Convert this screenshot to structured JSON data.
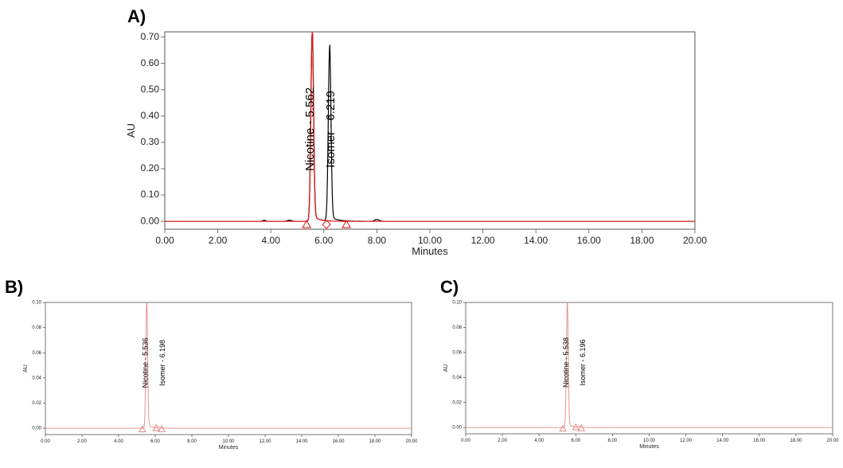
{
  "colors": {
    "trace_black": "#000000",
    "trace_red": "#e01010",
    "trace_red_faint": "#e58a8a",
    "frame": "#555555"
  },
  "chart_data": [
    {
      "panel": "A)",
      "type": "line",
      "xlabel": "Minutes",
      "ylabel": "AU",
      "xlim": [
        0,
        20
      ],
      "ylim": [
        -0.03,
        0.72
      ],
      "x_ticks": [
        "0.00",
        "2.00",
        "4.00",
        "6.00",
        "8.00",
        "10.00",
        "12.00",
        "14.00",
        "16.00",
        "18.00",
        "20.00"
      ],
      "y_ticks": [
        "0.00",
        "0.10",
        "0.20",
        "0.30",
        "0.40",
        "0.50",
        "0.60",
        "0.70"
      ],
      "grid": false,
      "series": [
        {
          "color": "red",
          "baseline": 0.0,
          "peaks": [
            {
              "x": 5.562,
              "y": 0.715,
              "width": 0.05
            }
          ]
        },
        {
          "color": "black",
          "baseline": 0.0,
          "peaks": [
            {
              "x": 5.562,
              "y": 0.715,
              "width": 0.05
            },
            {
              "x": 6.219,
              "y": 0.655,
              "width": 0.05
            },
            {
              "x": 3.75,
              "y": 0.004,
              "width": 0.05
            },
            {
              "x": 4.7,
              "y": 0.004,
              "width": 0.08
            },
            {
              "x": 8.0,
              "y": 0.007,
              "width": 0.08
            }
          ]
        }
      ],
      "peak_labels": [
        "Nicotine - 5.562",
        "Isomer - 6.219"
      ],
      "markers": [
        {
          "shape": "triangle",
          "x": 5.35,
          "y": -0.012
        },
        {
          "shape": "diamond",
          "x": 6.1,
          "y": -0.012
        },
        {
          "shape": "triangle",
          "x": 6.85,
          "y": -0.012
        }
      ]
    },
    {
      "panel": "B)",
      "type": "line",
      "xlabel": "Minutes",
      "ylabel": "AU",
      "xlim": [
        0,
        20
      ],
      "ylim": [
        -0.005,
        0.1
      ],
      "x_ticks": [
        "0.00",
        "2.00",
        "4.00",
        "6.00",
        "8.00",
        "10.00",
        "12.00",
        "14.00",
        "16.00",
        "18.00",
        "20.00"
      ],
      "y_ticks": [
        "0.00",
        "0.02",
        "0.04",
        "0.06",
        "0.08",
        "0.10"
      ],
      "grid": false,
      "series": [
        {
          "color": "red",
          "baseline": 0.0,
          "peaks": [
            {
              "x": 5.536,
              "y": 0.1,
              "width": 0.05
            },
            {
              "x": 6.198,
              "y": 0.001,
              "width": 0.05
            }
          ]
        }
      ],
      "peak_labels": [
        "Nicotine - 5.536",
        "Isomer - 6.198"
      ],
      "markers": [
        {
          "shape": "triangle",
          "x": 5.3,
          "y": -0.0008
        },
        {
          "shape": "triangle",
          "x": 6.05,
          "y": 0.0002
        },
        {
          "shape": "triangle",
          "x": 6.35,
          "y": -0.0006
        }
      ]
    },
    {
      "panel": "C)",
      "type": "line",
      "xlabel": "Minutes",
      "ylabel": "AU",
      "xlim": [
        0,
        20
      ],
      "ylim": [
        -0.005,
        0.1
      ],
      "x_ticks": [
        "0.00",
        "2.00",
        "4.00",
        "6.00",
        "8.00",
        "10.00",
        "12.00",
        "14.00",
        "16.00",
        "18.00",
        "20.00"
      ],
      "y_ticks": [
        "0.00",
        "0.02",
        "0.04",
        "0.06",
        "0.08",
        "0.10"
      ],
      "grid": false,
      "series": [
        {
          "color": "red",
          "baseline": 0.0,
          "peaks": [
            {
              "x": 5.538,
              "y": 0.1,
              "width": 0.05
            },
            {
              "x": 6.196,
              "y": 0.001,
              "width": 0.05
            }
          ]
        }
      ],
      "peak_labels": [
        "Nicotine - 5.538",
        "Isomer - 6.196"
      ],
      "markers": [
        {
          "shape": "triangle",
          "x": 5.3,
          "y": -0.0008
        },
        {
          "shape": "triangle",
          "x": 6.0,
          "y": 0.0002
        },
        {
          "shape": "triangle",
          "x": 6.3,
          "y": -0.0006
        }
      ]
    }
  ]
}
